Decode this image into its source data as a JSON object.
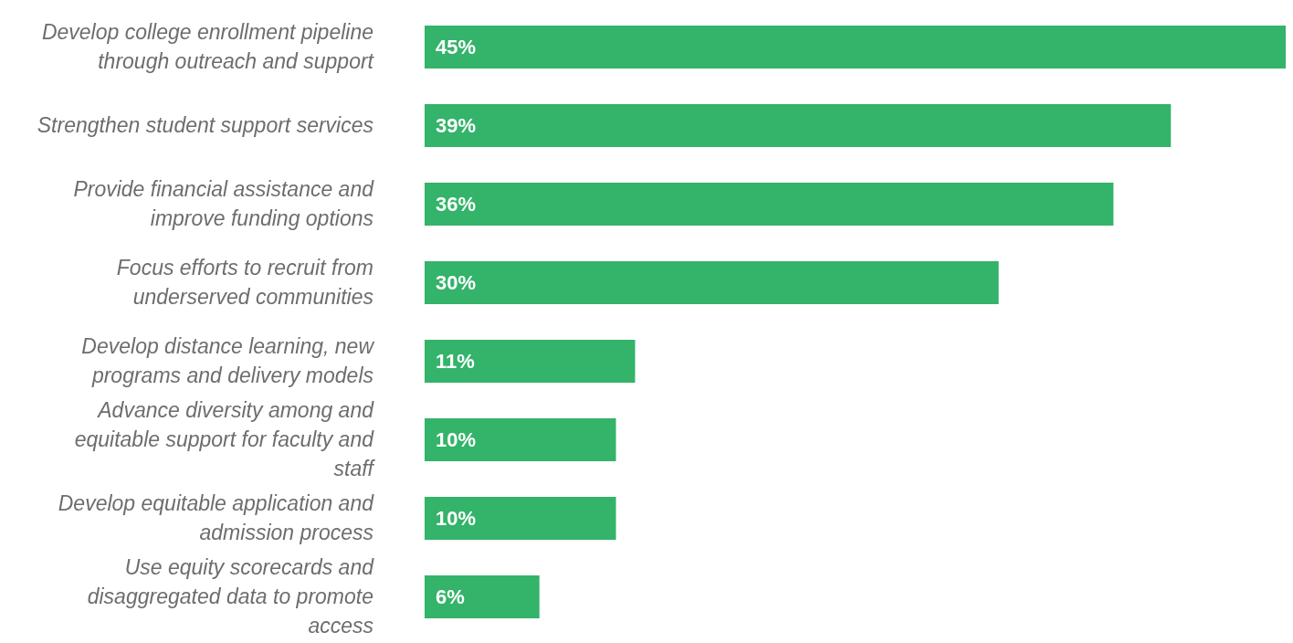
{
  "chart_data": {
    "type": "bar",
    "orientation": "horizontal",
    "categories": [
      "Develop college enrollment pipeline through outreach and support",
      "Strengthen student support services",
      "Provide financial assistance and improve funding options",
      "Focus efforts to recruit from underserved communities",
      "Develop distance learning, new programs and delivery models",
      "Advance diversity among and equitable support for faculty and staff",
      "Develop equitable application and admission process",
      "Use equity scorecards and disaggregated data to promote access"
    ],
    "values": [
      45,
      39,
      36,
      30,
      11,
      10,
      10,
      6
    ],
    "value_labels": [
      "45%",
      "39%",
      "36%",
      "30%",
      "11%",
      "10%",
      "10%",
      "6%"
    ],
    "color": "#34b36a",
    "tick_labels": "y",
    "grid": false,
    "legend": false
  }
}
